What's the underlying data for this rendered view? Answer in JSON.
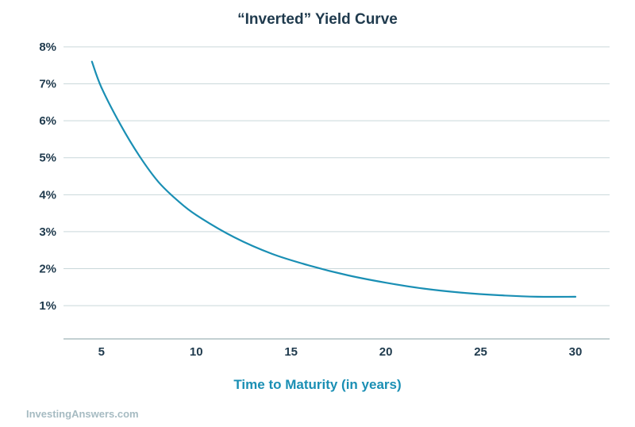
{
  "chart_data": {
    "type": "line",
    "title": "“Inverted” Yield Curve",
    "xlabel": "Time to Maturity (in years)",
    "ylabel": "",
    "x_ticks": [
      5,
      10,
      15,
      20,
      25,
      30
    ],
    "y_ticks": [
      1,
      2,
      3,
      4,
      5,
      6,
      7,
      8
    ],
    "y_tick_labels": [
      "1%",
      "2%",
      "3%",
      "4%",
      "5%",
      "6%",
      "7%",
      "8%"
    ],
    "xlim": [
      3,
      31.8
    ],
    "ylim": [
      0.1,
      8
    ],
    "grid": "horizontal",
    "series": [
      {
        "x": [
          4.5,
          5,
          6,
          7,
          8,
          9,
          10,
          12,
          14,
          16,
          18,
          20,
          22,
          24,
          26,
          28,
          30
        ],
        "y": [
          7.6,
          6.9,
          5.9,
          5.05,
          4.35,
          3.85,
          3.45,
          2.85,
          2.4,
          2.08,
          1.82,
          1.62,
          1.46,
          1.35,
          1.28,
          1.24,
          1.24
        ]
      }
    ],
    "colors": {
      "line": "#1a8fb4",
      "text": "#1f3a4d",
      "grid": "#c9d7da",
      "xlabel": "#1a8fb4"
    }
  },
  "source_label": "InvestingAnswers.com",
  "source_color": "#a6bbc2"
}
